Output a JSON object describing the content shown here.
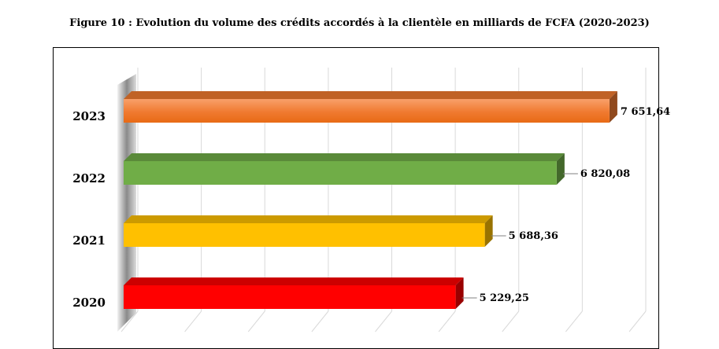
{
  "figure_title": "Figure 10  : Evolution du volume des crédits accordés à la clientèle en milliards de FCFA (2020-2023)",
  "colors": {
    "2023": "#f07a30",
    "2022": "#70ad47",
    "2021": "#ffc000",
    "2020": "#ff0000"
  },
  "chart_data": {
    "type": "bar",
    "orientation": "horizontal",
    "style": "3d",
    "title": "Figure 10  : Evolution du volume des crédits accordés à la clientèle en milliards de FCFA (2020-2023)",
    "categories": [
      "2020",
      "2021",
      "2022",
      "2023"
    ],
    "values": [
      5229.25,
      5688.36,
      6820.08,
      7651.64
    ],
    "data_labels": [
      "5 229,25",
      "5 688,36",
      "6 820,08",
      "7 651,64"
    ],
    "xlim": [
      0,
      8000
    ],
    "grid": true,
    "legend": "none"
  }
}
